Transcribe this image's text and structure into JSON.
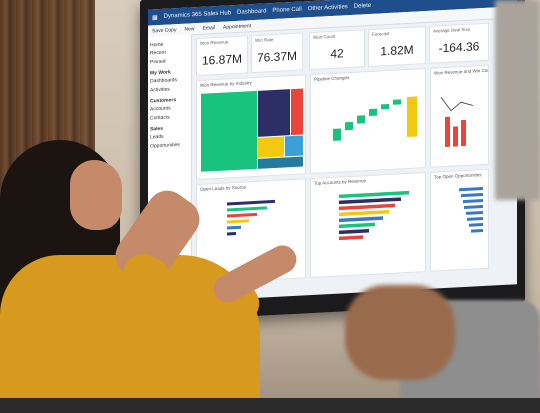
{
  "dashboard": {
    "topbar": {
      "app_title": "Dynamics 365 Sales Hub",
      "tab_dashboard": "Dashboard",
      "tab_phone": "Phone Call",
      "tab_activities": "Other Activities",
      "tab_delete": "Delete"
    },
    "commandbar": {
      "save": "Save Copy",
      "new": "New",
      "email": "Email",
      "appointment": "Appointment"
    },
    "nav": {
      "items": [
        "Home",
        "Recent",
        "Pinned"
      ],
      "section_my_work": "My Work",
      "work_items": [
        "Dashboards",
        "Activities"
      ],
      "section_customers": "Customers",
      "customer_items": [
        "Accounts",
        "Contacts"
      ],
      "section_sales": "Sales",
      "sales_items": [
        "Leads",
        "Opportunities"
      ]
    },
    "kpis": [
      {
        "label": "Won Revenue",
        "value": "16.87M"
      },
      {
        "label": "Win Rate",
        "value": "76.37M"
      },
      {
        "label": "Won Count",
        "value": "42"
      },
      {
        "label": "Forecast",
        "value": "1.82M"
      },
      {
        "label": "Average Deal Size",
        "value": "-164.36"
      }
    ],
    "panels": {
      "treemap_title": "Won Revenue by Industry",
      "waterfall_title": "Pipeline Changes",
      "column_title": "Won Revenue and Win Count",
      "bar1_title": "Open Leads by Source",
      "bar2_title": "Top Accounts by Revenue",
      "bar3_title": "Top Open Opportunities"
    },
    "colors": {
      "brand": "#1f4e8c",
      "accent_green": "#19c37d",
      "accent_yellow": "#f2c811",
      "accent_red": "#e8453c",
      "accent_blue": "#3a78c3",
      "accent_navy": "#2b2f66"
    }
  }
}
